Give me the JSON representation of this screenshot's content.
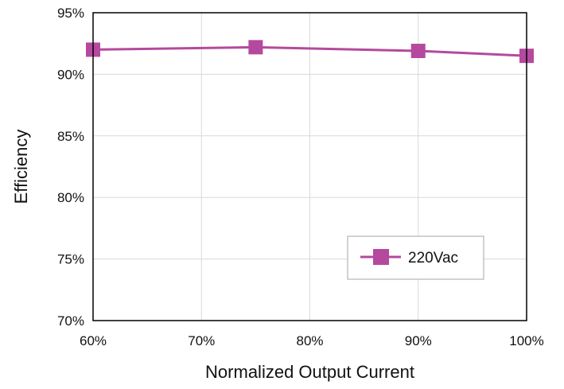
{
  "chart_data": {
    "type": "line",
    "x": [
      60,
      75,
      90,
      100
    ],
    "xlim": [
      60,
      100
    ],
    "x_ticks": [
      60,
      70,
      80,
      90,
      100
    ],
    "x_tick_labels": [
      "60%",
      "70%",
      "80%",
      "90%",
      "100%"
    ],
    "ylim": [
      70,
      95
    ],
    "y_ticks": [
      70,
      75,
      80,
      85,
      90,
      95
    ],
    "y_tick_labels": [
      "70%",
      "75%",
      "80%",
      "85%",
      "90%",
      "95%"
    ],
    "xlabel": "Normalized Output Current",
    "ylabel": "Efficiency",
    "grid": true,
    "legend_position": "bottom-right",
    "series": [
      {
        "name": "220Vac",
        "values": [
          92.0,
          92.2,
          91.9,
          91.5
        ],
        "color": "#b5499e",
        "marker": "square"
      }
    ]
  }
}
